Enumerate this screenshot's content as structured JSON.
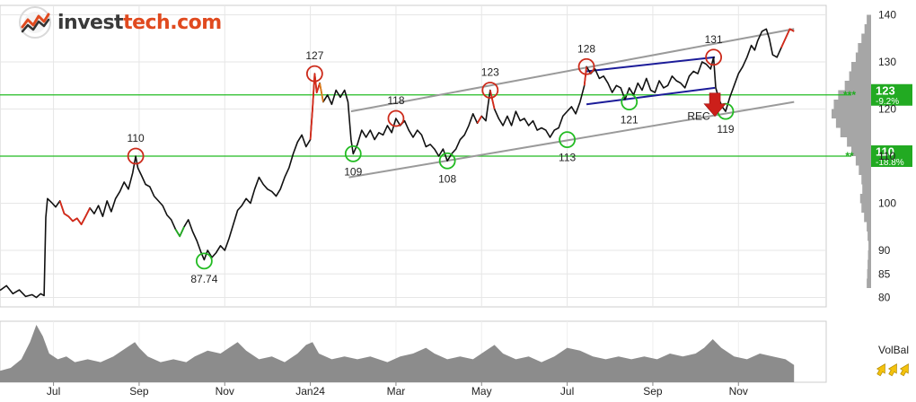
{
  "brand": {
    "name_left": "invest",
    "name_right": "tech.com",
    "icon": "investtech-logo-icon"
  },
  "chart_data": {
    "type": "line",
    "title": "",
    "xlabel": "",
    "ylabel": "",
    "ylim": [
      78,
      142
    ],
    "y_ticks": [
      80,
      85,
      90,
      100,
      110,
      120,
      130,
      140
    ],
    "y_tick_labels": [
      "80",
      "85",
      "90",
      "100",
      "110",
      "120",
      "130",
      "140"
    ],
    "x_ticks": [
      {
        "label": "Jul",
        "t": 1
      },
      {
        "label": "Sep",
        "t": 3
      },
      {
        "label": "Nov",
        "t": 5
      },
      {
        "label": "Jan24",
        "t": 7
      },
      {
        "label": "Mar",
        "t": 9
      },
      {
        "label": "May",
        "t": 11
      },
      {
        "label": "Jul",
        "t": 13
      },
      {
        "label": "Sep",
        "t": 15
      },
      {
        "label": "Nov",
        "t": 17
      }
    ],
    "xlim": [
      -0.25,
      19.05
    ],
    "grid": true,
    "price": [
      [
        -0.25,
        81.5
      ],
      [
        -0.1,
        82.5
      ],
      [
        0.05,
        80.8
      ],
      [
        0.2,
        81.6
      ],
      [
        0.35,
        80.2
      ],
      [
        0.5,
        80.6
      ],
      [
        0.6,
        80.0
      ],
      [
        0.7,
        80.8
      ],
      [
        0.78,
        80.4
      ],
      [
        0.82,
        97
      ],
      [
        0.86,
        101
      ],
      [
        0.95,
        100.2
      ],
      [
        1.05,
        99.2
      ],
      [
        1.15,
        100.5
      ],
      [
        1.25,
        97.8
      ],
      [
        1.35,
        97.2
      ],
      [
        1.45,
        96.2
      ],
      [
        1.55,
        96.8
      ],
      [
        1.65,
        95.5
      ],
      [
        1.75,
        97.2
      ],
      [
        1.85,
        99.0
      ],
      [
        1.95,
        97.8
      ],
      [
        2.05,
        99.5
      ],
      [
        2.15,
        97.2
      ],
      [
        2.25,
        100.5
      ],
      [
        2.35,
        98.2
      ],
      [
        2.45,
        101.0
      ],
      [
        2.55,
        102.5
      ],
      [
        2.65,
        104.5
      ],
      [
        2.75,
        103.0
      ],
      [
        2.85,
        106.5
      ],
      [
        2.92,
        110.0
      ],
      [
        2.97,
        107.5
      ],
      [
        3.05,
        106.0
      ],
      [
        3.15,
        104.0
      ],
      [
        3.25,
        103.5
      ],
      [
        3.35,
        101.5
      ],
      [
        3.45,
        100.5
      ],
      [
        3.55,
        99.5
      ],
      [
        3.65,
        97.5
      ],
      [
        3.75,
        96.5
      ],
      [
        3.85,
        94.5
      ],
      [
        3.95,
        93.0
      ],
      [
        4.05,
        95.0
      ],
      [
        4.15,
        96.5
      ],
      [
        4.25,
        94.0
      ],
      [
        4.35,
        92.0
      ],
      [
        4.45,
        89.5
      ],
      [
        4.52,
        88.0
      ],
      [
        4.6,
        90.0
      ],
      [
        4.7,
        88.5
      ],
      [
        4.8,
        89.5
      ],
      [
        4.9,
        91.0
      ],
      [
        5.0,
        90.0
      ],
      [
        5.1,
        92.5
      ],
      [
        5.2,
        95.5
      ],
      [
        5.3,
        98.5
      ],
      [
        5.4,
        99.5
      ],
      [
        5.5,
        101.0
      ],
      [
        5.6,
        100.0
      ],
      [
        5.7,
        103.0
      ],
      [
        5.8,
        105.5
      ],
      [
        5.9,
        104.0
      ],
      [
        6.0,
        103.0
      ],
      [
        6.1,
        102.5
      ],
      [
        6.2,
        101.5
      ],
      [
        6.3,
        103.0
      ],
      [
        6.4,
        105.5
      ],
      [
        6.5,
        107.5
      ],
      [
        6.6,
        110.5
      ],
      [
        6.7,
        113.0
      ],
      [
        6.8,
        114.5
      ],
      [
        6.9,
        112.0
      ],
      [
        7.0,
        113.5
      ],
      [
        7.05,
        120.0
      ],
      [
        7.1,
        127.5
      ],
      [
        7.15,
        123.5
      ],
      [
        7.22,
        125.5
      ],
      [
        7.3,
        121.5
      ],
      [
        7.4,
        123.0
      ],
      [
        7.5,
        121.0
      ],
      [
        7.6,
        124.0
      ],
      [
        7.7,
        122.5
      ],
      [
        7.8,
        124.0
      ],
      [
        7.88,
        121.5
      ],
      [
        7.95,
        113.5
      ],
      [
        8.0,
        110.5
      ],
      [
        8.1,
        112.5
      ],
      [
        8.2,
        115.5
      ],
      [
        8.3,
        114.0
      ],
      [
        8.4,
        115.5
      ],
      [
        8.5,
        113.5
      ],
      [
        8.6,
        115.0
      ],
      [
        8.7,
        114.5
      ],
      [
        8.8,
        116.5
      ],
      [
        8.9,
        115.0
      ],
      [
        9.0,
        118.0
      ],
      [
        9.1,
        116.5
      ],
      [
        9.2,
        117.5
      ],
      [
        9.3,
        115.5
      ],
      [
        9.4,
        114.0
      ],
      [
        9.5,
        115.5
      ],
      [
        9.6,
        114.5
      ],
      [
        9.7,
        112.0
      ],
      [
        9.8,
        112.5
      ],
      [
        9.9,
        111.5
      ],
      [
        10.0,
        110.0
      ],
      [
        10.1,
        111.5
      ],
      [
        10.2,
        109.0
      ],
      [
        10.3,
        110.5
      ],
      [
        10.4,
        111.5
      ],
      [
        10.5,
        113.5
      ],
      [
        10.6,
        114.5
      ],
      [
        10.7,
        116.5
      ],
      [
        10.8,
        119.0
      ],
      [
        10.9,
        117.0
      ],
      [
        11.0,
        118.5
      ],
      [
        11.1,
        117.5
      ],
      [
        11.2,
        124.0
      ],
      [
        11.3,
        120.0
      ],
      [
        11.4,
        118.0
      ],
      [
        11.5,
        116.5
      ],
      [
        11.6,
        118.5
      ],
      [
        11.7,
        116.5
      ],
      [
        11.8,
        119.5
      ],
      [
        11.9,
        117.5
      ],
      [
        12.0,
        118.0
      ],
      [
        12.1,
        116.5
      ],
      [
        12.2,
        117.5
      ],
      [
        12.3,
        115.5
      ],
      [
        12.4,
        116.0
      ],
      [
        12.5,
        115.5
      ],
      [
        12.6,
        114.0
      ],
      [
        12.7,
        115.5
      ],
      [
        12.8,
        116.0
      ],
      [
        12.9,
        118.5
      ],
      [
        13.0,
        119.5
      ],
      [
        13.1,
        120.5
      ],
      [
        13.2,
        119.0
      ],
      [
        13.3,
        121.5
      ],
      [
        13.4,
        125.0
      ],
      [
        13.45,
        129.0
      ],
      [
        13.55,
        127.5
      ],
      [
        13.65,
        128.5
      ],
      [
        13.75,
        126.5
      ],
      [
        13.85,
        127.0
      ],
      [
        13.95,
        125.5
      ],
      [
        14.05,
        123.5
      ],
      [
        14.15,
        125.0
      ],
      [
        14.25,
        124.5
      ],
      [
        14.35,
        122.0
      ],
      [
        14.45,
        124.5
      ],
      [
        14.55,
        123.0
      ],
      [
        14.65,
        125.5
      ],
      [
        14.75,
        124.0
      ],
      [
        14.85,
        126.5
      ],
      [
        14.95,
        124.0
      ],
      [
        15.05,
        123.5
      ],
      [
        15.15,
        126.0
      ],
      [
        15.25,
        124.5
      ],
      [
        15.35,
        125.0
      ],
      [
        15.45,
        127.0
      ],
      [
        15.55,
        126.0
      ],
      [
        15.65,
        125.5
      ],
      [
        15.75,
        124.5
      ],
      [
        15.85,
        127.0
      ],
      [
        15.95,
        128.0
      ],
      [
        16.05,
        127.5
      ],
      [
        16.15,
        130.0
      ],
      [
        16.25,
        129.5
      ],
      [
        16.35,
        128.5
      ],
      [
        16.42,
        131.0
      ],
      [
        16.47,
        124.5
      ],
      [
        16.55,
        122.0
      ],
      [
        16.62,
        120.5
      ],
      [
        16.7,
        119.5
      ],
      [
        16.8,
        122.5
      ],
      [
        16.9,
        125.0
      ],
      [
        17.0,
        127.5
      ],
      [
        17.1,
        129.0
      ],
      [
        17.2,
        131.0
      ],
      [
        17.3,
        133.5
      ],
      [
        17.38,
        132.5
      ],
      [
        17.45,
        134.5
      ],
      [
        17.55,
        136.5
      ],
      [
        17.65,
        137.0
      ],
      [
        17.72,
        135.0
      ],
      [
        17.8,
        131.5
      ],
      [
        17.9,
        131.0
      ],
      [
        18.0,
        133.0
      ],
      [
        18.1,
        135.0
      ],
      [
        18.2,
        137.0
      ],
      [
        18.3,
        136.5
      ]
    ],
    "red_segments": [
      [
        1.1,
        1.9
      ],
      [
        3.02,
        3.12
      ],
      [
        5.65,
        5.78
      ],
      [
        6.98,
        7.25
      ],
      [
        10.9,
        11.02
      ],
      [
        11.15,
        11.3
      ],
      [
        13.4,
        13.5
      ],
      [
        16.38,
        16.45
      ],
      [
        18.0,
        18.3
      ]
    ],
    "green_segments": [
      [
        3.85,
        4.1
      ]
    ],
    "orange_segments": [
      [
        7.22,
        7.35
      ]
    ],
    "price_labels": [
      {
        "text": "110",
        "x": 2.92,
        "y": 110.0,
        "type": "top"
      },
      {
        "text": "87.74",
        "x": 4.52,
        "y": 87.74,
        "type": "bottom"
      },
      {
        "text": "127",
        "x": 7.1,
        "y": 127.5,
        "type": "top"
      },
      {
        "text": "109",
        "x": 8.0,
        "y": 110.5,
        "type": "bottom"
      },
      {
        "text": "118",
        "x": 9.0,
        "y": 118.0,
        "type": "top"
      },
      {
        "text": "108",
        "x": 10.2,
        "y": 109.0,
        "type": "bottom"
      },
      {
        "text": "123",
        "x": 11.2,
        "y": 124.0,
        "type": "top"
      },
      {
        "text": "113",
        "x": 13.0,
        "y": 113.5,
        "type": "bottom"
      },
      {
        "text": "128",
        "x": 13.45,
        "y": 129.0,
        "type": "top"
      },
      {
        "text": "121",
        "x": 14.45,
        "y": 121.5,
        "type": "bottom"
      },
      {
        "text": "131",
        "x": 16.42,
        "y": 131.0,
        "type": "top"
      },
      {
        "text": "119",
        "x": 16.7,
        "y": 119.5,
        "type": "bottom"
      }
    ],
    "trend_lines": [
      {
        "color": "gray",
        "points": [
          [
            7.95,
            119.5
          ],
          [
            18.3,
            137.0
          ]
        ]
      },
      {
        "color": "gray",
        "points": [
          [
            7.9,
            105.5
          ],
          [
            18.3,
            121.5
          ]
        ]
      },
      {
        "color": "navy",
        "points": [
          [
            13.45,
            128.0
          ],
          [
            16.45,
            131.0
          ]
        ]
      },
      {
        "color": "navy",
        "points": [
          [
            13.45,
            121.0
          ],
          [
            16.45,
            124.5
          ]
        ]
      }
    ],
    "support_resistance": [
      {
        "value": 123,
        "label": "123",
        "pct": "-9.2%",
        "markers": "***"
      },
      {
        "value": 110,
        "label": "110",
        "pct": "-18.8%",
        "markers": "**"
      }
    ],
    "signal": {
      "text": "REC",
      "x": 16.45,
      "y": 121.5,
      "direction": "down"
    },
    "volume_profile": [
      [
        83,
        1.0
      ],
      [
        85,
        0.9
      ],
      [
        87,
        0.8
      ],
      [
        89,
        0.7
      ],
      [
        91,
        0.6
      ],
      [
        93,
        0.8
      ],
      [
        95,
        1.0
      ],
      [
        97,
        1.6
      ],
      [
        99,
        2.2
      ],
      [
        101,
        2.5
      ],
      [
        103,
        2.0
      ],
      [
        105,
        2.2
      ],
      [
        107,
        2.8
      ],
      [
        109,
        3.5
      ],
      [
        111,
        4.5
      ],
      [
        113,
        5.5
      ],
      [
        115,
        7.0
      ],
      [
        117,
        8.0
      ],
      [
        119,
        9.0
      ],
      [
        121,
        8.5
      ],
      [
        123,
        7.5
      ],
      [
        125,
        6.0
      ],
      [
        127,
        5.0
      ],
      [
        129,
        4.5
      ],
      [
        131,
        3.5
      ],
      [
        133,
        3.0
      ],
      [
        135,
        2.2
      ],
      [
        137,
        1.5
      ],
      [
        139,
        1.0
      ]
    ],
    "volume": [
      [
        -0.25,
        4
      ],
      [
        0.0,
        5
      ],
      [
        0.25,
        8
      ],
      [
        0.45,
        14
      ],
      [
        0.6,
        20
      ],
      [
        0.75,
        16
      ],
      [
        0.9,
        10
      ],
      [
        1.1,
        8
      ],
      [
        1.3,
        9
      ],
      [
        1.5,
        7
      ],
      [
        1.8,
        8
      ],
      [
        2.1,
        7
      ],
      [
        2.4,
        9
      ],
      [
        2.7,
        12
      ],
      [
        2.9,
        14
      ],
      [
        3.0,
        12
      ],
      [
        3.2,
        9
      ],
      [
        3.5,
        7
      ],
      [
        3.8,
        8
      ],
      [
        4.1,
        7
      ],
      [
        4.3,
        9
      ],
      [
        4.6,
        11
      ],
      [
        4.9,
        10
      ],
      [
        5.1,
        12
      ],
      [
        5.3,
        14
      ],
      [
        5.5,
        11
      ],
      [
        5.8,
        8
      ],
      [
        6.1,
        9
      ],
      [
        6.4,
        7
      ],
      [
        6.7,
        10
      ],
      [
        6.9,
        13
      ],
      [
        7.05,
        14
      ],
      [
        7.2,
        10
      ],
      [
        7.5,
        8
      ],
      [
        7.8,
        9
      ],
      [
        8.1,
        8
      ],
      [
        8.4,
        9
      ],
      [
        8.8,
        7
      ],
      [
        9.1,
        9
      ],
      [
        9.4,
        10
      ],
      [
        9.7,
        12
      ],
      [
        9.9,
        10
      ],
      [
        10.2,
        8
      ],
      [
        10.5,
        9
      ],
      [
        10.8,
        8
      ],
      [
        11.1,
        11
      ],
      [
        11.3,
        13
      ],
      [
        11.5,
        10
      ],
      [
        11.8,
        8
      ],
      [
        12.1,
        9
      ],
      [
        12.4,
        7
      ],
      [
        12.7,
        9
      ],
      [
        13.0,
        12
      ],
      [
        13.3,
        11
      ],
      [
        13.6,
        9
      ],
      [
        13.9,
        8
      ],
      [
        14.2,
        9
      ],
      [
        14.5,
        8
      ],
      [
        14.8,
        9
      ],
      [
        15.1,
        8
      ],
      [
        15.4,
        10
      ],
      [
        15.7,
        9
      ],
      [
        16.0,
        10
      ],
      [
        16.2,
        12
      ],
      [
        16.4,
        15
      ],
      [
        16.6,
        12
      ],
      [
        16.9,
        9
      ],
      [
        17.2,
        8
      ],
      [
        17.5,
        10
      ],
      [
        17.8,
        9
      ],
      [
        18.1,
        8
      ],
      [
        18.3,
        6
      ]
    ],
    "volume_label": "VolBal"
  }
}
